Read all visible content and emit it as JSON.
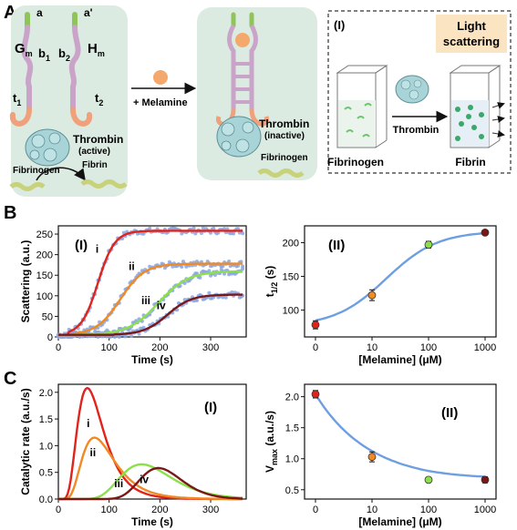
{
  "figure": {
    "panel_letters": [
      "A",
      "B",
      "C"
    ],
    "panelA": {
      "strand_left": {
        "end_label": "a",
        "name": "G",
        "name_sub": "m",
        "domain_label": "b",
        "domain_sub": "1",
        "tail_label": "t",
        "tail_sub": "1"
      },
      "strand_right": {
        "end_label": "a'",
        "name": "H",
        "name_sub": "m",
        "domain_label": "b",
        "domain_sub": "2",
        "tail_label": "t",
        "tail_sub": "2"
      },
      "thrombin_active": "Thrombin",
      "thrombin_active_state": "(active)",
      "fibrinogen_left": "Fibrinogen",
      "fibrin_left": "Fibrin",
      "arrow_label": "+ Melamine",
      "thrombin_inactive": "Thrombin",
      "thrombin_inactive_state": "(inactive)",
      "fibrinogen_mid": "Fibrinogen",
      "inset_label": "(I)",
      "inset_title_line1": "Light",
      "inset_title_line2": "scattering",
      "inset_thrombin": "Thrombin",
      "inset_fibrinogen": "Fibrinogen",
      "inset_fibrin": "Fibrin",
      "colors": {
        "panel_bg": "#dcebe2",
        "strand": "#c9a4c8",
        "tail": "#f0a07a",
        "green_end": "#8fc45a",
        "melamine": "#f4a86c",
        "thrombin": "#a8d4d8",
        "fibrin": "#c8d27a",
        "light_box": "#fbe4c2"
      }
    }
  },
  "chart_data": [
    {
      "id": "B-I",
      "type": "scatter",
      "panel_label": "(I)",
      "xlabel": "Time (s)",
      "ylabel": "Scattering (a.u.)",
      "xlim": [
        0,
        370
      ],
      "ylim": [
        0,
        270
      ],
      "xticks": [
        0,
        100,
        200,
        300
      ],
      "yticks": [
        0,
        50,
        100,
        150,
        200,
        250
      ],
      "series": [
        {
          "name": "i",
          "color": "#e0241b",
          "plateau": 258,
          "half_time": 78,
          "slope": 28,
          "onset": 20
        },
        {
          "name": "ii",
          "color": "#f08a24",
          "plateau": 178,
          "half_time": 122,
          "slope": 40,
          "onset": 30
        },
        {
          "name": "iii",
          "color": "#8be04a",
          "plateau": 160,
          "half_time": 197,
          "slope": 50,
          "onset": 30
        },
        {
          "name": "iv",
          "color": "#7a1818",
          "plateau": 103,
          "half_time": 215,
          "slope": 40,
          "onset": 110
        }
      ],
      "scatter_color": "#8aa6e0"
    },
    {
      "id": "B-II",
      "type": "scatter",
      "panel_label": "(II)",
      "xlabel": "[Melamine] (μM)",
      "ylabel": "t",
      "ylabel_sub": "1/2",
      "ylabel_unit": " (s)",
      "xscale": "log",
      "x": [
        0,
        10,
        100,
        1000
      ],
      "xticklabels": [
        "0",
        "10",
        "100",
        "1000"
      ],
      "y": [
        78,
        122,
        197,
        215
      ],
      "err": [
        6,
        8,
        5,
        2
      ],
      "point_colors": [
        "#e0241b",
        "#f08a24",
        "#8be04a",
        "#7a1818"
      ],
      "ylim": [
        60,
        225
      ],
      "yticks": [
        100,
        150,
        200
      ],
      "fit_color": "#6e9fe0"
    },
    {
      "id": "C-I",
      "type": "line",
      "panel_label": "(I)",
      "xlabel": "Time (s)",
      "ylabel": "Catalytic rate (a.u./s)",
      "xlim": [
        0,
        370
      ],
      "ylim": [
        0,
        2.15
      ],
      "xticks": [
        0,
        100,
        200,
        300
      ],
      "yticks": [
        0.0,
        0.5,
        1.0,
        1.5,
        2.0
      ],
      "series": [
        {
          "name": "i",
          "color": "#e0241b",
          "peak_time": 58,
          "peak": 2.08,
          "width": 28
        },
        {
          "name": "ii",
          "color": "#f08a24",
          "peak_time": 72,
          "peak": 1.15,
          "width": 35
        },
        {
          "name": "iii",
          "color": "#8be04a",
          "peak_time": 165,
          "peak": 0.65,
          "width": 55
        },
        {
          "name": "iv",
          "color": "#7a1818",
          "peak_time": 198,
          "peak": 0.58,
          "width": 45
        }
      ]
    },
    {
      "id": "C-II",
      "type": "scatter",
      "panel_label": "(II)",
      "xlabel": "[Melamine] (μM)",
      "ylabel": "V",
      "ylabel_sub": "max",
      "ylabel_unit": " (a.u./s)",
      "xscale": "log",
      "x": [
        0,
        10,
        100,
        1000
      ],
      "xticklabels": [
        "0",
        "10",
        "100",
        "1000"
      ],
      "y": [
        2.04,
        1.03,
        0.66,
        0.66
      ],
      "err": [
        0.06,
        0.08,
        0.04,
        0.05
      ],
      "point_colors": [
        "#e0241b",
        "#f08a24",
        "#8be04a",
        "#7a1818"
      ],
      "ylim": [
        0.35,
        2.2
      ],
      "yticks": [
        0.5,
        1.0,
        1.5,
        2.0
      ],
      "fit_color": "#6e9fe0"
    }
  ]
}
